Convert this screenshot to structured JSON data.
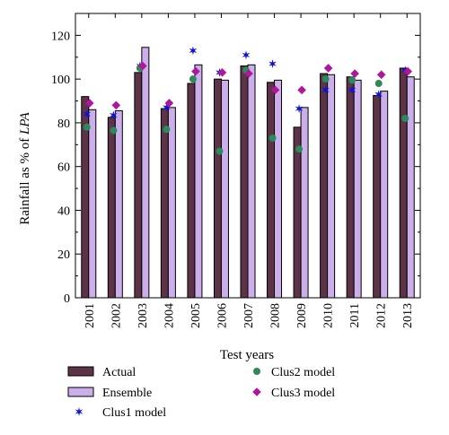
{
  "chart_data": {
    "type": "bar",
    "categories": [
      "2001",
      "2002",
      "2003",
      "2004",
      "2005",
      "2006",
      "2007",
      "2008",
      "2009",
      "2010",
      "2011",
      "2012",
      "2013"
    ],
    "xlabel": "Test years",
    "ylabel_prefix": "Rainfall as % of ",
    "ylabel_italic": "LPA",
    "ylim": [
      0,
      130
    ],
    "yticks": [
      0,
      20,
      40,
      60,
      80,
      100,
      120
    ],
    "grid": false,
    "legend_position": "bottom",
    "series": [
      {
        "name": "Actual",
        "kind": "bar",
        "color": "#5c3347",
        "values": [
          92,
          82.5,
          103,
          86.5,
          98,
          100,
          106,
          98.5,
          78,
          102.5,
          101,
          92.5,
          105
        ]
      },
      {
        "name": "Ensemble",
        "kind": "bar",
        "color": "#ccaeea",
        "values": [
          86,
          85.5,
          114.5,
          87,
          106.5,
          99.5,
          106.5,
          99.5,
          87,
          102,
          99.5,
          94.5,
          101
        ]
      },
      {
        "name": "Clus1 model",
        "kind": "marker",
        "marker": "star",
        "color": "#1010e0",
        "values": [
          84,
          83.5,
          106,
          87,
          113,
          103,
          111,
          107,
          86.5,
          95,
          95,
          93,
          104
        ]
      },
      {
        "name": "Clus2 model",
        "kind": "marker",
        "marker": "circle",
        "color": "#2a8a5c",
        "values": [
          78,
          76.5,
          105,
          77,
          100,
          67,
          104,
          73,
          68,
          100,
          99.5,
          98,
          82
        ]
      },
      {
        "name": "Clus3 model",
        "kind": "marker",
        "marker": "diamond",
        "color": "#b0169c",
        "values": [
          89,
          88,
          106,
          89,
          103.5,
          103,
          102.5,
          95,
          95,
          105,
          102.5,
          102,
          103.5
        ]
      }
    ]
  }
}
